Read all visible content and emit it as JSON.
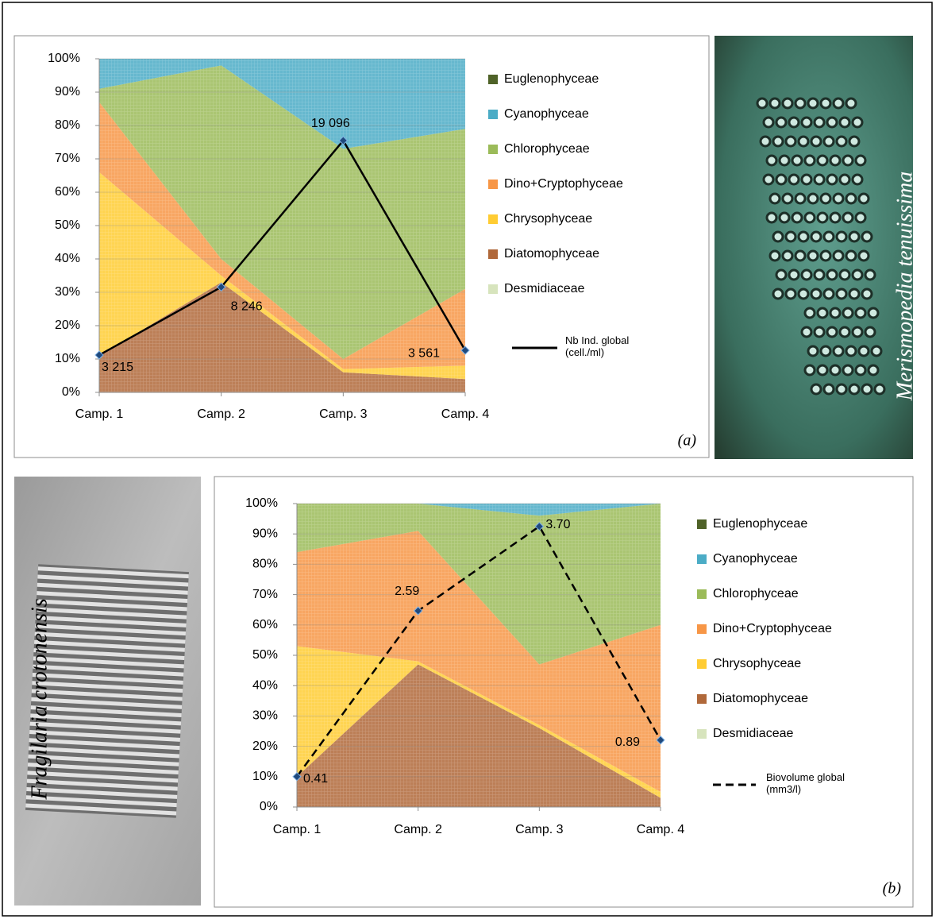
{
  "chart_data": [
    {
      "type": "area",
      "panel_label": "(a)",
      "categories": [
        "Camp. 1",
        "Camp. 2",
        "Camp. 3",
        "Camp. 4"
      ],
      "ylim": [
        0,
        100
      ],
      "yticks": [
        {
          "value": 0,
          "label": "0%"
        },
        {
          "value": 10,
          "label": "10%"
        },
        {
          "value": 20,
          "label": "20%"
        },
        {
          "value": 30,
          "label": "30%"
        },
        {
          "value": 40,
          "label": "40%"
        },
        {
          "value": 50,
          "label": "50%"
        },
        {
          "value": 60,
          "label": "60%"
        },
        {
          "value": 70,
          "label": "70%"
        },
        {
          "value": 80,
          "label": "80%"
        },
        {
          "value": 90,
          "label": "90%"
        },
        {
          "value": 100,
          "label": "100%"
        }
      ],
      "y2lim": [
        450,
        25150
      ],
      "grid": true,
      "legend": "right",
      "series": [
        {
          "name": "Euglenophyceae",
          "color": "#4f6228",
          "values": [
            0,
            0,
            0,
            0
          ]
        },
        {
          "name": "Cyanophyceae",
          "color": "#4bacc6",
          "values": [
            9,
            2,
            27,
            21
          ]
        },
        {
          "name": "Chlorophyceae",
          "color": "#9bbb59",
          "values": [
            4,
            58,
            63,
            48
          ]
        },
        {
          "name": "Dino+Cryptophyceae",
          "color": "#f79646",
          "values": [
            21,
            5,
            3,
            23
          ]
        },
        {
          "name": "Chrysophyceae",
          "color": "#ffcc33",
          "values": [
            55,
            2,
            1,
            4
          ]
        },
        {
          "name": "Diatomophyceae",
          "color": "#b0683a",
          "values": [
            11,
            33,
            6,
            4
          ]
        },
        {
          "name": "Desmidiaceae",
          "color": "#d7e4bd",
          "values": [
            0,
            0,
            0,
            0
          ]
        },
        {
          "name": "Nb Ind. global (cell./ml)",
          "type": "line",
          "axis": "y2",
          "color": "#000000",
          "line_style": "solid",
          "values": [
            3215,
            8246,
            19096,
            3561
          ],
          "value_labels": [
            "3 215",
            "8 246",
            "19 096",
            "3 561"
          ]
        }
      ]
    },
    {
      "type": "area",
      "panel_label": "(b)",
      "categories": [
        "Camp. 1",
        "Camp. 2",
        "Camp. 3",
        "Camp. 4"
      ],
      "ylim": [
        0,
        100
      ],
      "yticks": [
        {
          "value": 0,
          "label": "0%"
        },
        {
          "value": 10,
          "label": "10%"
        },
        {
          "value": 20,
          "label": "20%"
        },
        {
          "value": 30,
          "label": "30%"
        },
        {
          "value": 40,
          "label": "40%"
        },
        {
          "value": 50,
          "label": "50%"
        },
        {
          "value": 60,
          "label": "60%"
        },
        {
          "value": 70,
          "label": "70%"
        },
        {
          "value": 80,
          "label": "80%"
        },
        {
          "value": 90,
          "label": "90%"
        },
        {
          "value": 100,
          "label": "100%"
        }
      ],
      "y2lim": [
        0.01,
        4.0
      ],
      "grid": true,
      "legend": "right",
      "series": [
        {
          "name": "Euglenophyceae",
          "color": "#4f6228",
          "values": [
            0,
            0,
            0,
            0
          ]
        },
        {
          "name": "Cyanophyceae",
          "color": "#4bacc6",
          "values": [
            0,
            0,
            4,
            0
          ]
        },
        {
          "name": "Chlorophyceae",
          "color": "#9bbb59",
          "values": [
            16,
            9,
            49,
            40
          ]
        },
        {
          "name": "Dino+Cryptophyceae",
          "color": "#f79646",
          "values": [
            31,
            43,
            20,
            55
          ]
        },
        {
          "name": "Chrysophyceae",
          "color": "#ffcc33",
          "values": [
            43,
            1,
            1,
            2
          ]
        },
        {
          "name": "Diatomophyceae",
          "color": "#b0683a",
          "values": [
            10,
            47,
            26,
            3
          ]
        },
        {
          "name": "Desmidiaceae",
          "color": "#d7e4bd",
          "values": [
            0,
            0,
            0,
            0
          ]
        },
        {
          "name": "Biovolume global (mm3/l)",
          "type": "line",
          "axis": "y2",
          "color": "#000000",
          "line_style": "dashed",
          "values": [
            0.41,
            2.59,
            3.7,
            0.89
          ],
          "value_labels": [
            "0.41",
            "2.59",
            "3.70",
            "0.89"
          ]
        }
      ]
    }
  ],
  "photos": [
    {
      "caption": "Merismopedia tenuissima"
    },
    {
      "caption": "Fragilaria crotonensis"
    }
  ]
}
